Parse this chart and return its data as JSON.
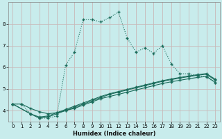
{
  "xlabel": "Humidex (Indice chaleur)",
  "background_color": "#c8ecec",
  "grid_color": "#c8b8b8",
  "line_color": "#1a6b5a",
  "xlim": [
    -0.5,
    23.5
  ],
  "ylim": [
    3.5,
    9.0
  ],
  "yticks": [
    4,
    5,
    6,
    7,
    8
  ],
  "xticks": [
    0,
    1,
    2,
    3,
    4,
    5,
    6,
    7,
    8,
    9,
    10,
    11,
    12,
    13,
    14,
    15,
    16,
    17,
    18,
    19,
    20,
    21,
    22,
    23
  ],
  "curve_main_x": [
    0,
    1,
    2,
    3,
    4,
    5,
    6,
    7,
    8,
    9,
    10,
    11,
    12,
    13,
    14,
    15,
    16,
    17,
    18,
    19,
    20,
    21,
    22,
    23
  ],
  "curve_main_y": [
    4.3,
    4.3,
    3.85,
    3.65,
    3.65,
    3.75,
    6.1,
    6.7,
    8.2,
    8.2,
    8.1,
    8.3,
    8.55,
    7.35,
    6.7,
    6.9,
    6.65,
    7.0,
    6.15,
    5.7,
    5.7,
    5.6,
    5.55,
    5.3
  ],
  "curve_lin1_x": [
    0,
    1,
    2,
    3,
    4,
    5,
    6,
    7,
    8,
    9,
    10,
    11,
    12,
    13,
    14,
    15,
    16,
    17,
    18,
    19,
    20,
    21,
    22,
    23
  ],
  "curve_lin1_y": [
    4.3,
    4.3,
    4.1,
    3.95,
    3.85,
    3.9,
    4.0,
    4.1,
    4.25,
    4.4,
    4.55,
    4.65,
    4.75,
    4.85,
    4.95,
    5.05,
    5.15,
    5.25,
    5.33,
    5.4,
    5.47,
    5.53,
    5.58,
    5.3
  ],
  "curve_lin2_x": [
    0,
    2,
    3,
    4,
    5,
    6,
    7,
    8,
    9,
    10,
    11,
    12,
    13,
    14,
    15,
    16,
    17,
    18,
    19,
    20,
    21,
    22,
    23
  ],
  "curve_lin2_y": [
    4.3,
    3.85,
    3.65,
    3.7,
    3.85,
    4.0,
    4.15,
    4.3,
    4.45,
    4.6,
    4.75,
    4.85,
    4.95,
    5.05,
    5.15,
    5.25,
    5.35,
    5.43,
    5.5,
    5.57,
    5.63,
    5.68,
    5.4
  ],
  "curve_lin3_x": [
    0,
    2,
    3,
    4,
    5,
    6,
    7,
    8,
    9,
    10,
    11,
    12,
    13,
    14,
    15,
    16,
    17,
    18,
    19,
    20,
    21,
    22,
    23
  ],
  "curve_lin3_y": [
    4.3,
    3.85,
    3.7,
    3.75,
    3.9,
    4.05,
    4.2,
    4.35,
    4.5,
    4.65,
    4.78,
    4.88,
    4.98,
    5.08,
    5.18,
    5.28,
    5.38,
    5.46,
    5.53,
    5.6,
    5.66,
    5.71,
    5.45
  ],
  "markersize": 2.0,
  "linewidth": 0.8
}
